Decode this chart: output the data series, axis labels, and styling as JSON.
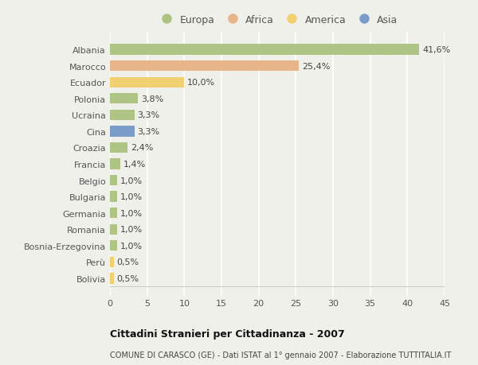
{
  "countries": [
    "Albania",
    "Marocco",
    "Ecuador",
    "Polonia",
    "Ucraina",
    "Cina",
    "Croazia",
    "Francia",
    "Belgio",
    "Bulgaria",
    "Germania",
    "Romania",
    "Bosnia-Erzegovina",
    "Perù",
    "Bolivia"
  ],
  "values": [
    41.6,
    25.4,
    10.0,
    3.8,
    3.3,
    3.3,
    2.4,
    1.4,
    1.0,
    1.0,
    1.0,
    1.0,
    1.0,
    0.5,
    0.5
  ],
  "labels": [
    "41,6%",
    "25,4%",
    "10,0%",
    "3,8%",
    "3,3%",
    "3,3%",
    "2,4%",
    "1,4%",
    "1,0%",
    "1,0%",
    "1,0%",
    "1,0%",
    "1,0%",
    "0,5%",
    "0,5%"
  ],
  "colors": [
    "#adc484",
    "#e8b48a",
    "#f0d070",
    "#adc484",
    "#adc484",
    "#7b9bc8",
    "#adc484",
    "#adc484",
    "#adc484",
    "#adc484",
    "#adc484",
    "#adc484",
    "#adc484",
    "#f0d070",
    "#f0d070"
  ],
  "legend_labels": [
    "Europa",
    "Africa",
    "America",
    "Asia"
  ],
  "legend_colors": [
    "#adc484",
    "#e8b48a",
    "#f0d070",
    "#7b9bc8"
  ],
  "title": "Cittadini Stranieri per Cittadinanza - 2007",
  "subtitle": "COMUNE DI CARASCO (GE) - Dati ISTAT al 1° gennaio 2007 - Elaborazione TUTTITALIA.IT",
  "xlim": [
    0,
    45
  ],
  "xticks": [
    0,
    5,
    10,
    15,
    20,
    25,
    30,
    35,
    40,
    45
  ],
  "bg_color": "#f0f0eb",
  "plot_bg_color": "#f0f0eb",
  "grid_color": "#ffffff",
  "bar_height": 0.65,
  "label_fontsize": 8,
  "ytick_fontsize": 8,
  "xtick_fontsize": 8
}
